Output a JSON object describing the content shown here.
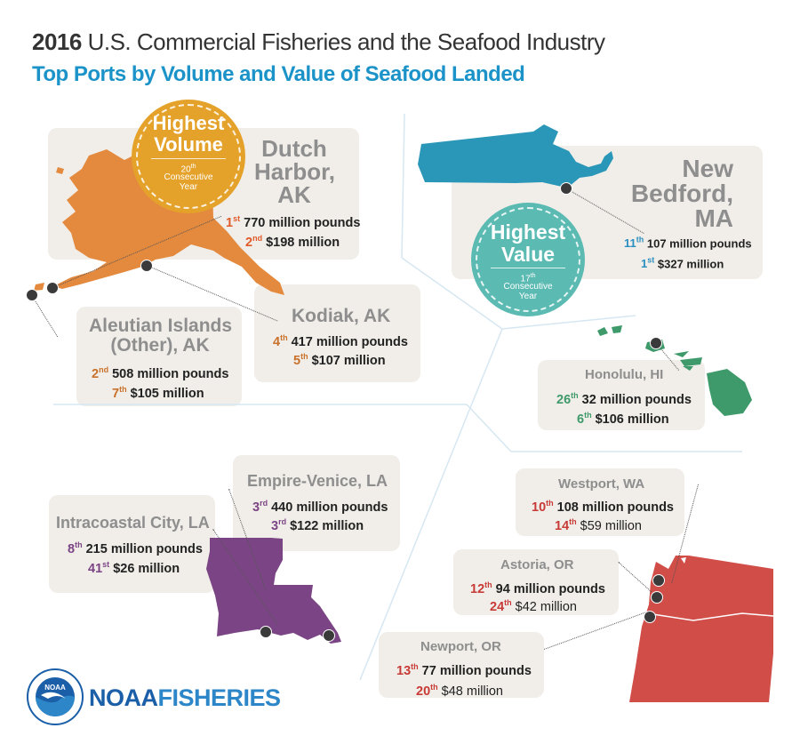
{
  "title": {
    "year": "2016",
    "rest": " U.S. Commercial Fisheries and the Seafood Industry",
    "subtitle": "Top Ports by Volume and Value of Seafood Landed"
  },
  "badges": {
    "volume": {
      "line1": "Highest",
      "line2": "Volume",
      "count": "20",
      "count_suffix": "th",
      "line3": "Consecutive",
      "line4": "Year",
      "color": "#e5a22a"
    },
    "value": {
      "line1": "Highest",
      "line2": "Value",
      "count": "17",
      "count_suffix": "th",
      "line3": "Consecutive",
      "line4": "Year",
      "color": "#5bbab2"
    }
  },
  "colors": {
    "alaska": "#e48a3e",
    "massachusetts": "#2a97b8",
    "hawaii": "#3e9a6a",
    "louisiana": "#7b4585",
    "pacific_nw": "#d14d48",
    "card": "#f1eee9"
  },
  "ports": {
    "dutch_harbor": {
      "name1": "Dutch",
      "name2": "Harbor,",
      "name3": "AK",
      "vol_rank": "1",
      "vol_suf": "st",
      "vol": "770 million pounds",
      "val_rank": "2",
      "val_suf": "nd",
      "val": "$198 million"
    },
    "new_bedford": {
      "name1": "New",
      "name2": "Bedford,",
      "name3": "MA",
      "vol_rank": "11",
      "vol_suf": "th",
      "vol": "107 million pounds",
      "val_rank": "1",
      "val_suf": "st",
      "val": "$327 million"
    },
    "aleutian": {
      "name1": "Aleutian Islands",
      "name2": "(Other), AK",
      "vol_rank": "2",
      "vol_suf": "nd",
      "vol": "508 million pounds",
      "val_rank": "7",
      "val_suf": "th",
      "val": "$105 million"
    },
    "kodiak": {
      "name": "Kodiak, AK",
      "vol_rank": "4",
      "vol_suf": "th",
      "vol": "417 million pounds",
      "val_rank": "5",
      "val_suf": "th",
      "val": "$107 million"
    },
    "honolulu": {
      "name": "Honolulu, HI",
      "vol_rank": "26",
      "vol_suf": "th",
      "vol": "32 million pounds",
      "val_rank": "6",
      "val_suf": "th",
      "val": "$106 million"
    },
    "empire_venice": {
      "name": "Empire-Venice, LA",
      "vol_rank": "3",
      "vol_suf": "rd",
      "vol": "440 million pounds",
      "val_rank": "3",
      "val_suf": "rd",
      "val": "$122 million"
    },
    "intracoastal": {
      "name": "Intracoastal City, LA",
      "vol_rank": "8",
      "vol_suf": "th",
      "vol": "215 million pounds",
      "val_rank": "41",
      "val_suf": "st",
      "val": "$26 million"
    },
    "westport": {
      "name": "Westport, WA",
      "vol_rank": "10",
      "vol_suf": "th",
      "vol": "108 million pounds",
      "val_rank": "14",
      "val_suf": "th",
      "val": "$59 million"
    },
    "astoria": {
      "name": "Astoria, OR",
      "vol_rank": "12",
      "vol_suf": "th",
      "vol": "94 million pounds",
      "val_rank": "24",
      "val_suf": "th",
      "val": "$42 million"
    },
    "newport": {
      "name": "Newport, OR",
      "vol_rank": "13",
      "vol_suf": "th",
      "vol": "77 million pounds",
      "val_rank": "20",
      "val_suf": "th",
      "val": "$48 million"
    }
  },
  "logo": {
    "part1": "NOAA",
    "part2": "FISHERIES",
    "seal_text": "NOAA"
  }
}
